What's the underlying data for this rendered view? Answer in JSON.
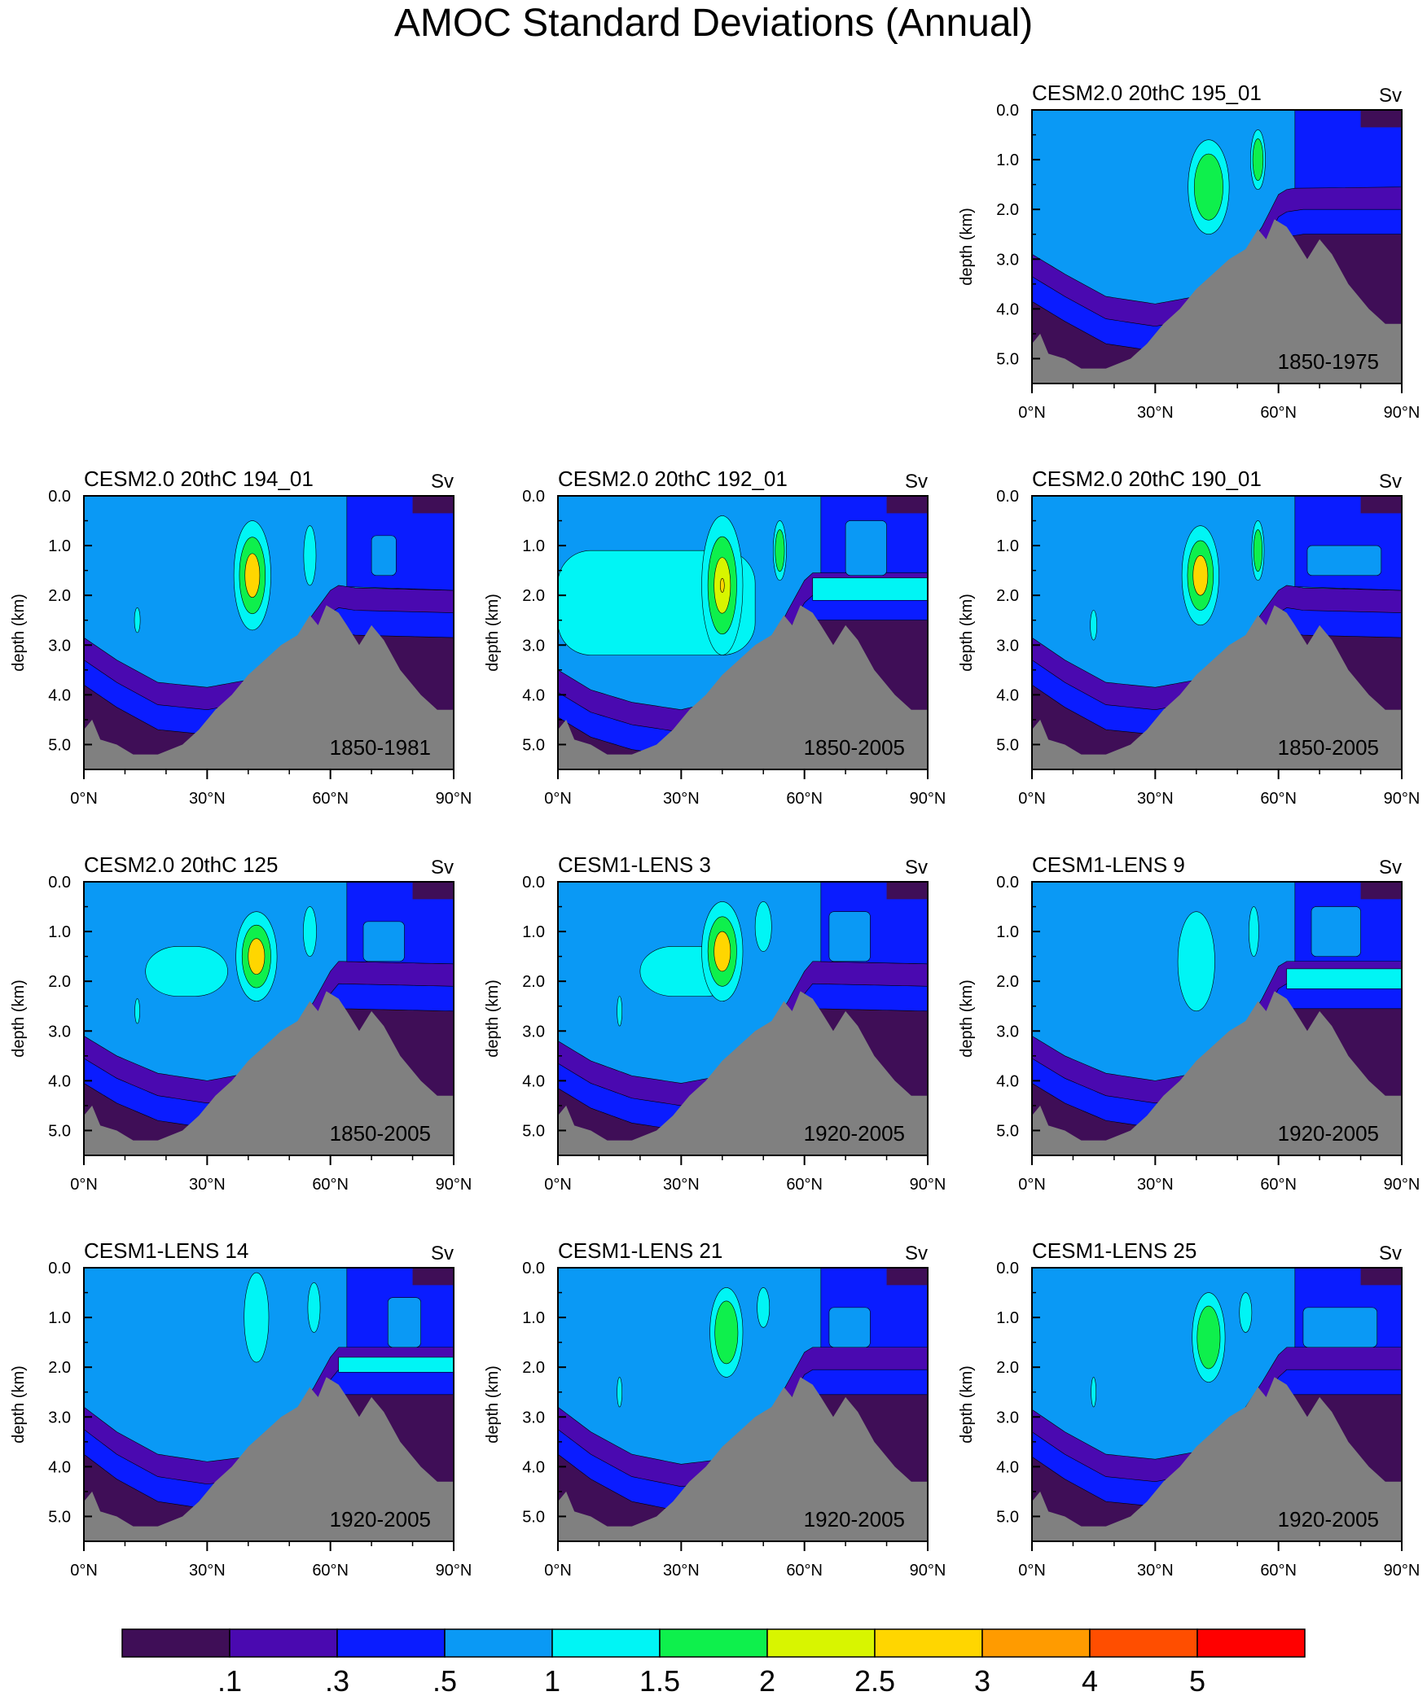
{
  "title": "AMOC Standard Deviations (Annual)",
  "units": "Sv",
  "colors": {
    "land": "#808080",
    "levels": [
      "#3f0e57",
      "#4a09b0",
      "#0a1cff",
      "#0a99f5",
      "#00f5f5",
      "#0ef04c",
      "#d8f500",
      "#ffd600",
      "#ff9b00",
      "#ff4e00",
      "#ff0000"
    ]
  },
  "chart_data": {
    "type": "heatmap",
    "xlabel": "",
    "ylabel": "depth (km)",
    "xlim": [
      0,
      90
    ],
    "ylim": [
      5.5,
      0.0
    ],
    "x_ticks": [
      "0°N",
      "30°N",
      "60°N",
      "90°N"
    ],
    "y_ticks": [
      "0.0",
      "1.0",
      "2.0",
      "3.0",
      "4.0",
      "5.0"
    ],
    "colorbar": {
      "levels": [
        ".1",
        ".3",
        ".5",
        "1",
        "1.5",
        "2",
        "2.5",
        "3",
        "4",
        "5"
      ]
    },
    "panels": [
      {
        "id": "p195",
        "title": "CESM2.0 20thC 195_01",
        "period": "1850-1975",
        "row": 0,
        "col": 2
      },
      {
        "id": "p194",
        "title": "CESM2.0 20thC 194_01",
        "period": "1850-1981",
        "row": 1,
        "col": 0
      },
      {
        "id": "p192",
        "title": "CESM2.0 20thC 192_01",
        "period": "1850-2005",
        "row": 1,
        "col": 1
      },
      {
        "id": "p190",
        "title": "CESM2.0 20thC 190_01",
        "period": "1850-2005",
        "row": 1,
        "col": 2
      },
      {
        "id": "p125",
        "title": "CESM2.0 20thC 125",
        "period": "1850-2005",
        "row": 2,
        "col": 0
      },
      {
        "id": "lens3",
        "title": "CESM1-LENS 3",
        "period": "1920-2005",
        "row": 2,
        "col": 1
      },
      {
        "id": "lens9",
        "title": "CESM1-LENS 9",
        "period": "1920-2005",
        "row": 2,
        "col": 2
      },
      {
        "id": "lens14",
        "title": "CESM1-LENS 14",
        "period": "1920-2005",
        "row": 3,
        "col": 0
      },
      {
        "id": "lens21",
        "title": "CESM1-LENS 21",
        "period": "1920-2005",
        "row": 3,
        "col": 1
      },
      {
        "id": "lens25",
        "title": "CESM1-LENS 25",
        "period": "1920-2005",
        "row": 3,
        "col": 2
      }
    ]
  }
}
